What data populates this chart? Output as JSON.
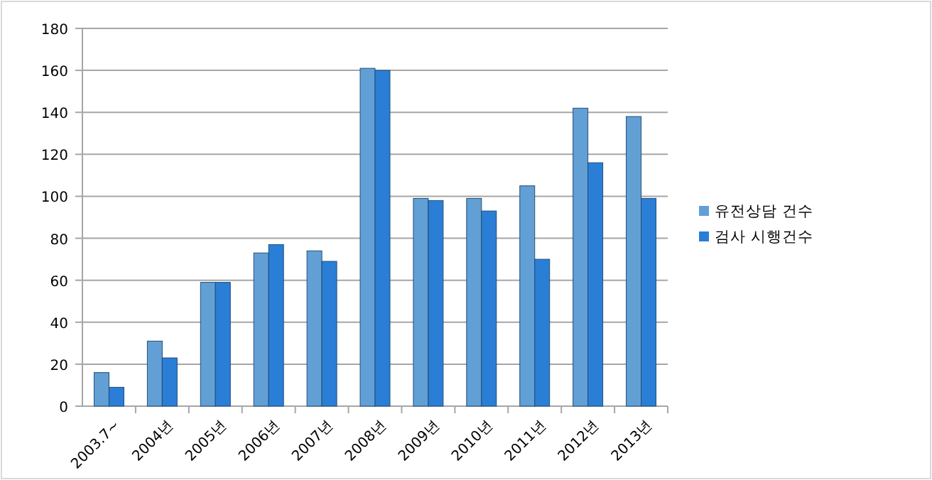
{
  "chart_data": {
    "type": "bar",
    "categories": [
      "2003.7~",
      "2004년",
      "2005년",
      "2006년",
      "2007년",
      "2008년",
      "2009년",
      "2010년",
      "2011년",
      "2012년",
      "2013년"
    ],
    "series": [
      {
        "name": "유전상담 건수",
        "color": "#629fd4",
        "values": [
          16,
          31,
          59,
          73,
          74,
          161,
          99,
          99,
          105,
          142,
          138
        ]
      },
      {
        "name": "검사 시행건수",
        "color": "#2a7ed6",
        "values": [
          9,
          23,
          59,
          77,
          69,
          160,
          98,
          93,
          70,
          116,
          99
        ]
      }
    ],
    "ylim": [
      0,
      180
    ],
    "yticks": [
      0,
      20,
      40,
      60,
      80,
      100,
      120,
      140,
      160,
      180
    ],
    "grid": "y",
    "legend": "right"
  }
}
